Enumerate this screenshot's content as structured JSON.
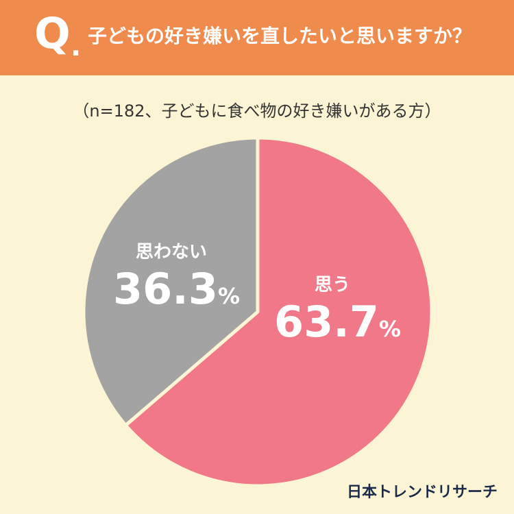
{
  "header": {
    "q_mark": "Q",
    "q_dot": ".",
    "question": "子どもの好き嫌いを直したいと思いますか？",
    "color": "#EF8B4C"
  },
  "sample_note": "（n=182、子どもに食べ物の好き嫌いがある方）",
  "brand": "日本トレンドリサーチ",
  "background_color": "#FBF5D5",
  "chart_data": {
    "type": "pie",
    "title": "子どもの好き嫌いを直したいと思いますか？",
    "subtitle": "（n=182、子どもに食べ物の好き嫌いがある方）",
    "slices": [
      {
        "label": "思う",
        "value": 63.7,
        "value_label": "63.7",
        "unit": "%",
        "color": "#F07888"
      },
      {
        "label": "思わない",
        "value": 36.3,
        "value_label": "36.3",
        "unit": "%",
        "color": "#A3A3A3"
      }
    ],
    "start": "top",
    "direction": "clockwise"
  }
}
